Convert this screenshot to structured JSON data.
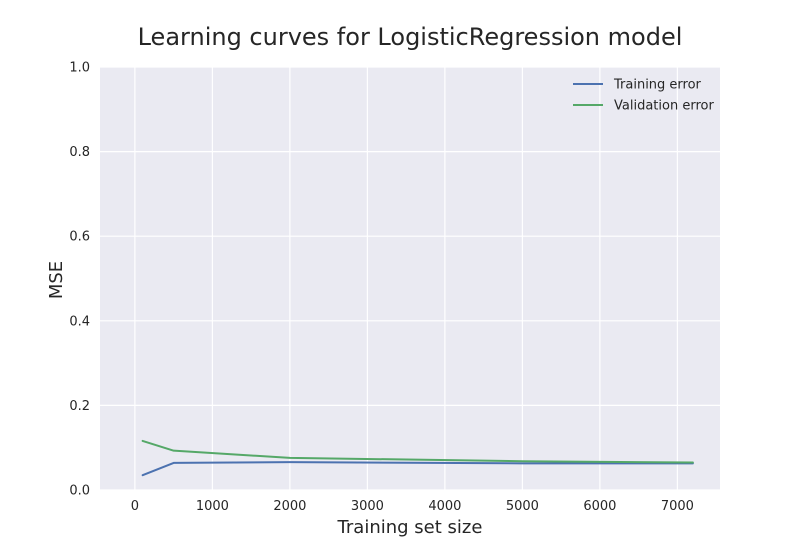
{
  "chart_data": {
    "type": "line",
    "title": "Learning curves for LogisticRegression model",
    "xlabel": "Training set size",
    "ylabel": "MSE",
    "xlim": [
      -450,
      7550
    ],
    "ylim": [
      0.0,
      1.0
    ],
    "xticks": [
      0,
      1000,
      2000,
      3000,
      4000,
      5000,
      6000,
      7000
    ],
    "xtick_labels": [
      "0",
      "1000",
      "2000",
      "3000",
      "4000",
      "5000",
      "6000",
      "7000"
    ],
    "yticks": [
      0.0,
      0.2,
      0.4,
      0.6,
      0.8,
      1.0
    ],
    "ytick_labels": [
      "0.0",
      "0.2",
      "0.4",
      "0.6",
      "0.8",
      "1.0"
    ],
    "grid": true,
    "legend_position": "upper-right",
    "background_color": "#eaeaf2",
    "grid_color": "#ffffff",
    "x": [
      100,
      500,
      2000,
      5000,
      7200
    ],
    "series": [
      {
        "name": "Training error",
        "color": "#4c72b0",
        "values": [
          0.035,
          0.064,
          0.066,
          0.063,
          0.063
        ]
      },
      {
        "name": "Validation error",
        "color": "#55a868",
        "values": [
          0.116,
          0.093,
          0.076,
          0.068,
          0.065
        ]
      }
    ]
  }
}
